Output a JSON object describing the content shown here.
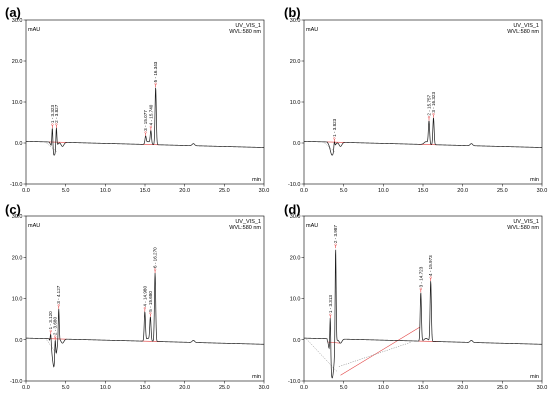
{
  "chart_data": [
    {
      "type": "line",
      "panel": "(a)",
      "detector": "UV_VIS_1",
      "wavelength": "WVL:580 nm",
      "ylabel": "mAU",
      "xlabel": "min",
      "xlim": [
        0,
        30
      ],
      "ylim": [
        -10,
        30
      ],
      "xticks": [
        "0.0",
        "5.0",
        "10.0",
        "15.0",
        "20.0",
        "25.0",
        "30.0"
      ],
      "yticks": [
        "-10.0",
        "0.0",
        "10.0",
        "20.0",
        "30.0"
      ],
      "peaks": [
        {
          "num": "1",
          "time": 3.323,
          "height": 5.5,
          "label": "1 - 3.323"
        },
        {
          "num": "2",
          "time": 3.827,
          "height": 5.2,
          "label": "2 - 3.827"
        },
        {
          "num": "3",
          "time": 15.077,
          "height": 1.8,
          "label": "3 - 15.077"
        },
        {
          "num": "4",
          "time": 15.74,
          "height": 3.2,
          "label": "4 - 15.740"
        },
        {
          "num": "5",
          "time": 16.343,
          "height": 14.0,
          "label": "5 - 16.343"
        }
      ]
    },
    {
      "type": "line",
      "panel": "(b)",
      "detector": "UV_VIS_1",
      "wavelength": "WVL:580 nm",
      "ylabel": "mAU",
      "xlabel": "min",
      "xlim": [
        0,
        30
      ],
      "ylim": [
        -10,
        30
      ],
      "xticks": [
        "0.0",
        "5.0",
        "10.0",
        "15.0",
        "20.0",
        "25.0",
        "30.0"
      ],
      "yticks": [
        "-10.0",
        "0.0",
        "10.0",
        "20.0",
        "30.0"
      ],
      "peaks": [
        {
          "num": "1",
          "time": 3.823,
          "height": 1.8,
          "label": "1 - 3.823"
        },
        {
          "num": "2",
          "time": 15.757,
          "height": 5.6,
          "label": "2 - 15.757"
        },
        {
          "num": "3",
          "time": 16.323,
          "height": 6.6,
          "label": "3 - 16.323"
        }
      ]
    },
    {
      "type": "line",
      "panel": "(c)",
      "detector": "UV_VIS_1",
      "wavelength": "WVL:580 nm",
      "ylabel": "mAU",
      "xlabel": "min",
      "xlim": [
        0,
        30
      ],
      "ylim": [
        -10,
        30
      ],
      "xticks": [
        "0.0",
        "5.0",
        "10.0",
        "15.0",
        "20.0",
        "25.0",
        "30.0"
      ],
      "yticks": [
        "-10.0",
        "0.0",
        "10.0",
        "20.0",
        "30.0"
      ],
      "peaks": [
        {
          "num": "1",
          "time": 3.12,
          "height": 2.6,
          "label": "1 - 3.120"
        },
        {
          "num": "2",
          "time": 3.68,
          "height": 5.8,
          "label": "2 - 3.680"
        },
        {
          "num": "3",
          "time": 4.127,
          "height": 7.8,
          "label": "3 - 4.127"
        },
        {
          "num": "4",
          "time": 14.98,
          "height": 7.0,
          "label": "4 - 14.980"
        },
        {
          "num": "5",
          "time": 15.68,
          "height": 5.6,
          "label": "5 - 15.680"
        },
        {
          "num": "6",
          "time": 16.27,
          "height": 16.6,
          "label": "6 - 16.270"
        }
      ]
    },
    {
      "type": "line",
      "panel": "(d)",
      "detector": "UV_VIS_1",
      "wavelength": "WVL:580 nm",
      "ylabel": "mAU",
      "xlabel": "min",
      "xlim": [
        0,
        30
      ],
      "ylim": [
        -10,
        30
      ],
      "xticks": [
        "0.0",
        "5.0",
        "10.0",
        "15.0",
        "20.0",
        "25.0",
        "30.0"
      ],
      "yticks": [
        "-10.0",
        "0.0",
        "10.0",
        "20.0",
        "30.0"
      ],
      "peaks": [
        {
          "num": "1",
          "time": 3.313,
          "height": 11.0,
          "label": "1 - 3.313"
        },
        {
          "num": "2",
          "time": 3.987,
          "height": 24.0,
          "label": "2 - 3.987"
        },
        {
          "num": "3",
          "time": 14.723,
          "height": 11.8,
          "label": "3 - 14.723"
        },
        {
          "num": "4",
          "time": 15.973,
          "height": 14.6,
          "label": "4 - 15.973"
        }
      ]
    }
  ]
}
